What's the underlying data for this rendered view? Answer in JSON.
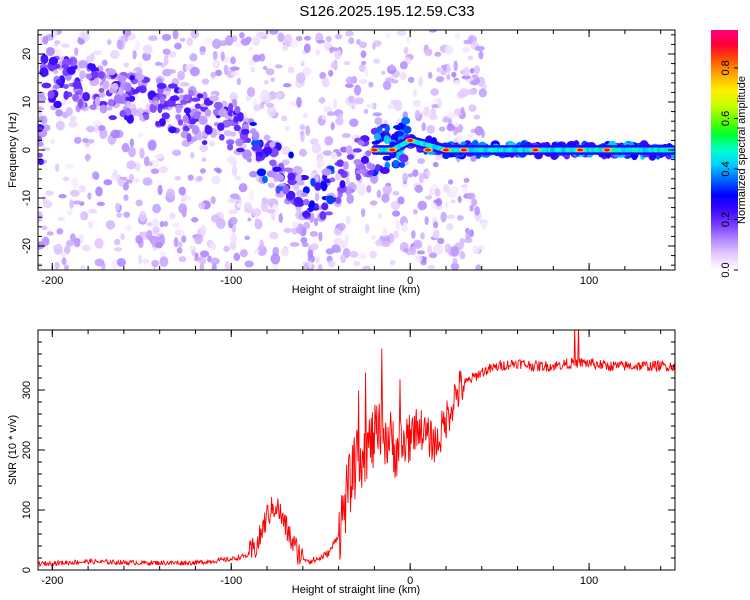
{
  "figure_title": "S126.2025.195.12.59.C33",
  "chart_data": [
    {
      "type": "heatmap",
      "xlabel": "Height of straight line (km)",
      "ylabel": "Frequency (Hz)",
      "xlim": [
        -208,
        148
      ],
      "ylim": [
        -25,
        25
      ],
      "xticks": [
        -200,
        -100,
        0,
        100
      ],
      "yticks": [
        -20,
        -10,
        0,
        10,
        20
      ],
      "grid": false,
      "colorbar": {
        "label": "Normalized spectral amplitude",
        "range": [
          0,
          0.95
        ],
        "ticks": [
          "0.0",
          "0.2",
          "0.4",
          "0.6",
          "0.8"
        ],
        "tick_values": [
          0,
          0.2,
          0.4,
          0.6,
          0.8
        ],
        "colormap": [
          "#ffffff",
          "#e6ccff",
          "#b38cff",
          "#7a3bff",
          "#3a0aff",
          "#0000ff",
          "#0066ff",
          "#00ccff",
          "#00ffcc",
          "#00ff33",
          "#66ff00",
          "#ccff00",
          "#ffee00",
          "#ffaa00",
          "#ff5500",
          "#ff0033",
          "#ff0080"
        ]
      },
      "ridge": {
        "description_points_x": [
          -205,
          -180,
          -160,
          -140,
          -120,
          -100,
          -90,
          -80,
          -70,
          -60,
          -50,
          -40,
          -30,
          -20,
          -10,
          0,
          20,
          40,
          80,
          120,
          148
        ],
        "description_points_y": [
          15,
          13,
          11,
          10,
          7,
          5,
          2,
          -2,
          -5,
          -8,
          -11,
          -6,
          -2,
          0,
          0,
          2,
          0,
          0,
          0,
          0,
          0
        ]
      },
      "hot_spots_x": [
        -20,
        -10,
        0,
        10,
        20,
        30,
        70,
        95,
        110
      ],
      "hot_spots_y": [
        0,
        0,
        2,
        0,
        0,
        0,
        0,
        0,
        0
      ]
    },
    {
      "type": "line",
      "xlabel": "Height of straight line (km)",
      "ylabel": "SNR (10 * v/v)",
      "xlim": [
        -208,
        148
      ],
      "ylim": [
        0,
        400
      ],
      "xticks": [
        -200,
        -100,
        0,
        100
      ],
      "yticks": [
        0,
        100,
        200,
        300
      ],
      "grid": false,
      "series": [
        {
          "color": "#ff0000",
          "x": [
            -208,
            -180,
            -150,
            -120,
            -100,
            -90,
            -85,
            -80,
            -75,
            -70,
            -65,
            -60,
            -55,
            -50,
            -45,
            -40,
            -35,
            -30,
            -25,
            -20,
            -15,
            -10,
            -5,
            0,
            5,
            10,
            15,
            20,
            25,
            30,
            40,
            50,
            60,
            70,
            80,
            90,
            100,
            110,
            120,
            130,
            148
          ],
          "values": [
            10,
            14,
            12,
            12,
            18,
            25,
            45,
            90,
            110,
            75,
            40,
            20,
            15,
            20,
            30,
            60,
            130,
            180,
            200,
            220,
            230,
            210,
            200,
            230,
            240,
            220,
            210,
            250,
            290,
            310,
            330,
            340,
            345,
            340,
            340,
            345,
            345,
            340,
            340,
            340,
            340
          ]
        }
      ]
    }
  ]
}
